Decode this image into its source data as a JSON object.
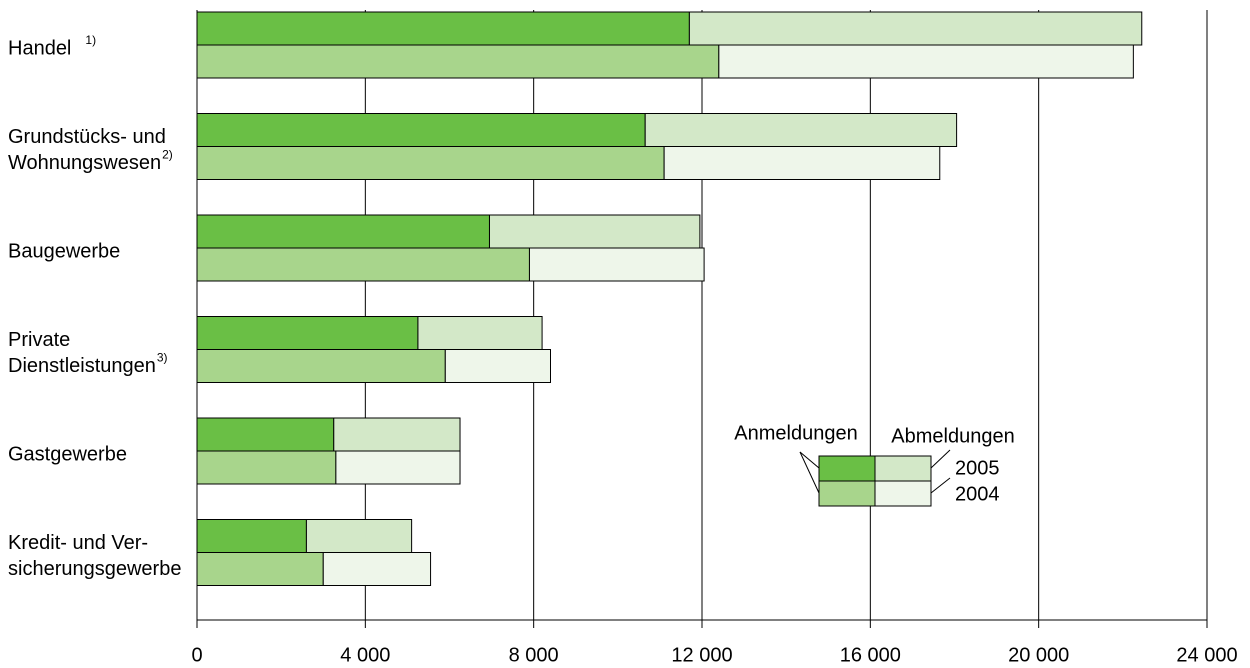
{
  "chart_data": {
    "type": "grouped-stacked-barh",
    "categories": [
      {
        "lines": [
          "Handel"
        ],
        "note": "1)"
      },
      {
        "lines": [
          "Grundstücks- und",
          "Wohnungswesen"
        ],
        "note": "2)"
      },
      {
        "lines": [
          "Baugewerbe"
        ]
      },
      {
        "lines": [
          "Private",
          "Dienstleistungen"
        ],
        "note": "3)"
      },
      {
        "lines": [
          "Gastgewerbe"
        ]
      },
      {
        "lines": [
          "Kredit- und Ver-",
          "sicherungsgewerbe"
        ]
      }
    ],
    "stack_names": [
      "Anmeldungen",
      "Abmeldungen"
    ],
    "series": [
      {
        "name": "2005",
        "colors": [
          "#6abf45",
          "#d3e8c8"
        ],
        "values": [
          [
            11700,
            10750
          ],
          [
            10650,
            7400
          ],
          [
            6950,
            5000
          ],
          [
            5250,
            2950
          ],
          [
            3250,
            3000
          ],
          [
            2600,
            2500
          ]
        ]
      },
      {
        "name": "2004",
        "colors": [
          "#a8d58c",
          "#eef6ea"
        ],
        "values": [
          [
            12400,
            9850
          ],
          [
            11100,
            6550
          ],
          [
            7900,
            4150
          ],
          [
            5900,
            2500
          ],
          [
            3300,
            2950
          ],
          [
            3000,
            2550
          ]
        ]
      }
    ],
    "xlim": [
      0,
      24000
    ],
    "xticks": [
      0,
      {
        "value": 4000,
        "label": "4 000"
      },
      {
        "value": 8000,
        "label": "8 000"
      },
      {
        "value": 12000,
        "label": "12 000"
      },
      {
        "value": 16000,
        "label": "16 000"
      },
      {
        "value": 20000,
        "label": "20 000"
      },
      {
        "value": 24000,
        "label": "24 000"
      }
    ],
    "grid": true
  }
}
